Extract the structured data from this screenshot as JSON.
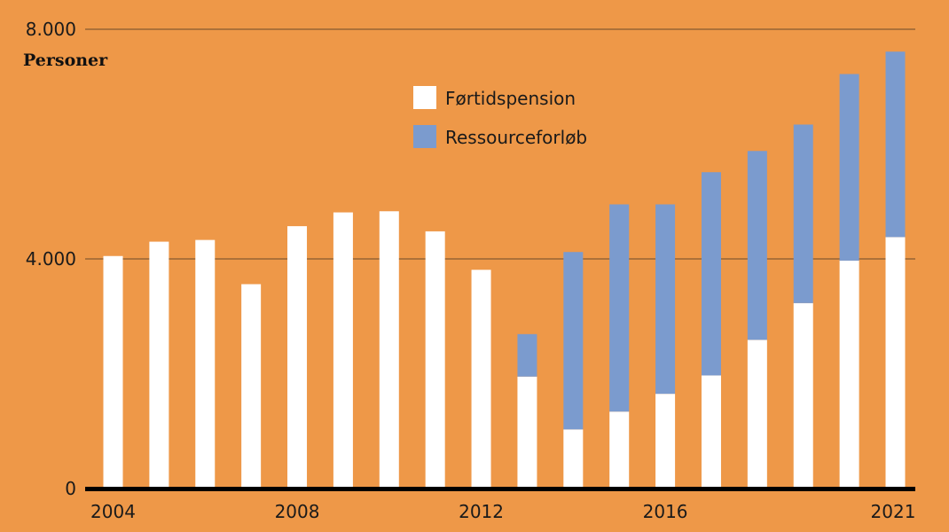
{
  "chart_data": {
    "type": "bar",
    "stacked": true,
    "ylabel": "Personer",
    "ylim": [
      0,
      8000
    ],
    "y_ticks": [
      {
        "value": 0,
        "label": "0"
      },
      {
        "value": 4000,
        "label": "4.000"
      },
      {
        "value": 8000,
        "label": "8.000"
      }
    ],
    "x_tick_labels": [
      {
        "year": 2004,
        "label": "2004"
      },
      {
        "year": 2008,
        "label": "2008"
      },
      {
        "year": 2012,
        "label": "2012"
      },
      {
        "year": 2016,
        "label": "2016"
      },
      {
        "year": 2021,
        "label": "2021"
      }
    ],
    "categories": [
      2004,
      2005,
      2006,
      2007,
      2008,
      2009,
      2010,
      2011,
      2012,
      2013,
      2014,
      2015,
      2016,
      2017,
      2018,
      2019,
      2020,
      2021
    ],
    "series": [
      {
        "name": "Førtidspension",
        "color": "#FFFFFF",
        "values": [
          4050,
          4300,
          4330,
          3560,
          4570,
          4810,
          4830,
          4480,
          3810,
          1950,
          1030,
          1340,
          1650,
          1970,
          2590,
          3230,
          3970,
          4380
        ]
      },
      {
        "name": "Ressourceforløb",
        "color": "#7B9BCE",
        "values": [
          0,
          0,
          0,
          0,
          0,
          0,
          0,
          0,
          0,
          740,
          3090,
          3610,
          3300,
          3540,
          3290,
          3110,
          3250,
          3230
        ]
      }
    ],
    "legend_position": "top-center",
    "grid": "horizontal"
  }
}
